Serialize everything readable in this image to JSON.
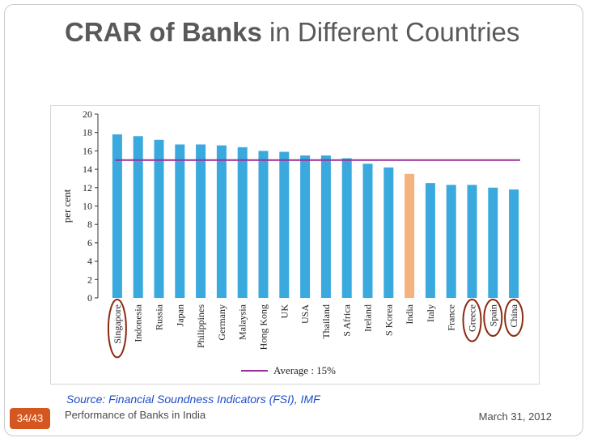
{
  "slide": {
    "title_bold": "CRAR of Banks",
    "title_rest": " in Different Countries",
    "source": "Source: Financial Soundness Indicators (FSI), IMF",
    "footer_left": "Performance of Banks in India",
    "footer_right": "March 31, 2012",
    "page": "34/43"
  },
  "colors": {
    "bar": "#3aa9de",
    "highlight_bar": "#f5b27c",
    "average_line": "#9b2f9b",
    "circle": "#8b2a12",
    "badge": "#d4571f"
  },
  "chart_data": {
    "type": "bar",
    "ylabel": "per cent",
    "ylim": [
      0,
      20
    ],
    "yticks": [
      0,
      2,
      4,
      6,
      8,
      10,
      12,
      14,
      16,
      18,
      20
    ],
    "grid": false,
    "categories": [
      "Singapore",
      "Indonesia",
      "Russia",
      "Japan",
      "Philippines",
      "Germany",
      "Malaysia",
      "Hong Kong",
      "UK",
      "USA",
      "Thailand",
      "S Africa",
      "Ireland",
      "S Korea",
      "India",
      "Italy",
      "France",
      "Greece",
      "Spain",
      "China"
    ],
    "values": [
      17.8,
      17.6,
      17.2,
      16.7,
      16.7,
      16.6,
      16.4,
      16.0,
      15.9,
      15.5,
      15.5,
      15.2,
      14.6,
      14.2,
      13.5,
      12.5,
      12.3,
      12.3,
      12.0,
      11.8
    ],
    "highlighted": [
      "India"
    ],
    "circled": [
      "Singapore",
      "Greece",
      "Spain",
      "China"
    ],
    "average": 15,
    "legend": "Average : 15%",
    "legend_position": "bottom"
  }
}
